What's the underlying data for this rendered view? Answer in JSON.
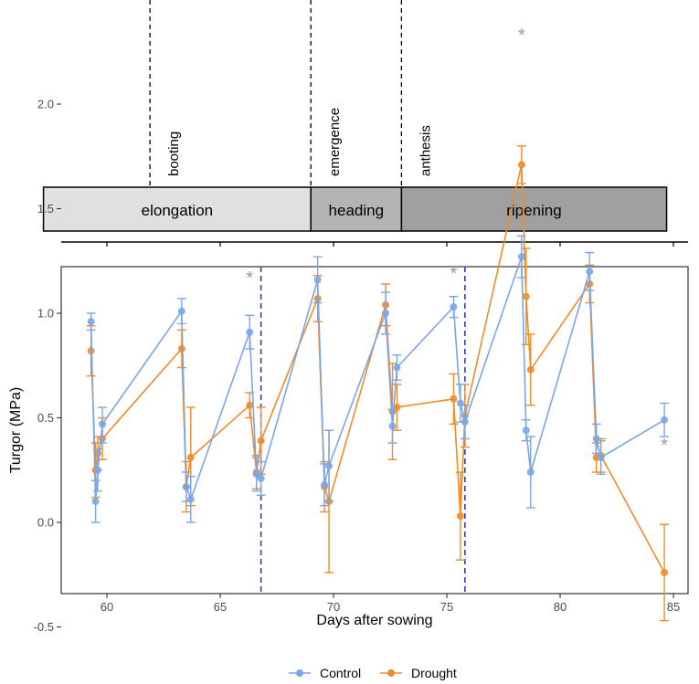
{
  "chart_data": {
    "type": "line",
    "xlabel": "Days after sowing",
    "ylabel": "Turgor (MPa)",
    "xlim": [
      58,
      86
    ],
    "ylim": [
      -0.6,
      2.3
    ],
    "x_ticks": [
      60,
      65,
      70,
      75,
      80,
      85
    ],
    "y_ticks": [
      -0.5,
      0.0,
      0.5,
      1.0,
      1.5,
      2.0
    ],
    "x_tick_labels": [
      "60",
      "65",
      "70",
      "75",
      "80",
      "85"
    ],
    "y_tick_labels": [
      "-0.5",
      "0.0",
      "0.5",
      "1.0",
      "1.5",
      "2.0"
    ],
    "stage_events": [
      {
        "label": "booting",
        "day": 61.9
      },
      {
        "label": "emergence",
        "day": 69.0
      },
      {
        "label": "anthesis",
        "day": 73.0
      }
    ],
    "stages": [
      {
        "label": "elongation",
        "start": 57.2,
        "end": 69.0,
        "color": "#e0e0e0"
      },
      {
        "label": "heading",
        "start": 69.0,
        "end": 73.0,
        "color": "#b4b4b4"
      },
      {
        "label": "ripening",
        "start": 73.0,
        "end": 84.7,
        "color": "#a0a0a0"
      }
    ],
    "vlines": [
      66.8,
      75.8
    ],
    "vline_color": "#3a3ab0",
    "series": [
      {
        "name": "Control",
        "color": "#7aa6e8",
        "points": [
          {
            "x": 59.3,
            "y": 0.96,
            "lo": 0.92,
            "hi": 1.0
          },
          {
            "x": 59.5,
            "y": 0.1,
            "lo": 0.0,
            "hi": 0.2
          },
          {
            "x": 59.6,
            "y": 0.25,
            "lo": 0.15,
            "hi": 0.35
          },
          {
            "x": 59.8,
            "y": 0.47,
            "lo": 0.38,
            "hi": 0.55
          },
          {
            "x": 63.3,
            "y": 1.01,
            "lo": 0.95,
            "hi": 1.07
          },
          {
            "x": 63.5,
            "y": 0.17,
            "lo": 0.1,
            "hi": 0.24
          },
          {
            "x": 63.7,
            "y": 0.11,
            "lo": 0.0,
            "hi": 0.22
          },
          {
            "x": 66.3,
            "y": 0.91,
            "lo": 0.83,
            "hi": 0.99
          },
          {
            "x": 66.6,
            "y": 0.23,
            "lo": 0.15,
            "hi": 0.31
          },
          {
            "x": 66.8,
            "y": 0.21,
            "lo": 0.13,
            "hi": 0.29
          },
          {
            "x": 69.3,
            "y": 1.16,
            "lo": 1.05,
            "hi": 1.27
          },
          {
            "x": 69.6,
            "y": 0.18,
            "lo": 0.08,
            "hi": 0.28
          },
          {
            "x": 69.8,
            "y": 0.27,
            "lo": 0.1,
            "hi": 0.44
          },
          {
            "x": 72.3,
            "y": 1.0,
            "lo": 0.9,
            "hi": 1.1
          },
          {
            "x": 72.6,
            "y": 0.46,
            "lo": 0.38,
            "hi": 0.54
          },
          {
            "x": 72.8,
            "y": 0.74,
            "lo": 0.68,
            "hi": 0.8
          },
          {
            "x": 75.3,
            "y": 1.03,
            "lo": 0.98,
            "hi": 1.08
          },
          {
            "x": 75.6,
            "y": 0.57,
            "lo": 0.48,
            "hi": 0.66
          },
          {
            "x": 75.8,
            "y": 0.48,
            "lo": 0.4,
            "hi": 0.56
          },
          {
            "x": 78.3,
            "y": 1.27,
            "lo": 1.17,
            "hi": 1.37
          },
          {
            "x": 78.5,
            "y": 0.44,
            "lo": 0.39,
            "hi": 0.49
          },
          {
            "x": 78.7,
            "y": 0.24,
            "lo": 0.07,
            "hi": 0.41
          },
          {
            "x": 81.3,
            "y": 1.2,
            "lo": 1.11,
            "hi": 1.29
          },
          {
            "x": 81.6,
            "y": 0.4,
            "lo": 0.33,
            "hi": 0.47
          },
          {
            "x": 81.8,
            "y": 0.31,
            "lo": 0.23,
            "hi": 0.39
          },
          {
            "x": 84.6,
            "y": 0.49,
            "lo": 0.41,
            "hi": 0.57
          }
        ]
      },
      {
        "name": "Drought",
        "color": "#ef8c26",
        "points": [
          {
            "x": 59.3,
            "y": 0.82,
            "lo": 0.7,
            "hi": 0.94
          },
          {
            "x": 59.5,
            "y": 0.25,
            "lo": 0.12,
            "hi": 0.38
          },
          {
            "x": 59.6,
            "y": 0.33,
            "lo": 0.25,
            "hi": 0.41
          },
          {
            "x": 59.8,
            "y": 0.4,
            "lo": 0.3,
            "hi": 0.5
          },
          {
            "x": 63.3,
            "y": 0.83,
            "lo": 0.74,
            "hi": 0.92
          },
          {
            "x": 63.5,
            "y": 0.17,
            "lo": 0.05,
            "hi": 0.29
          },
          {
            "x": 63.7,
            "y": 0.31,
            "lo": 0.08,
            "hi": 0.55
          },
          {
            "x": 66.3,
            "y": 0.56,
            "lo": 0.5,
            "hi": 0.62
          },
          {
            "x": 66.6,
            "y": 0.24,
            "lo": 0.16,
            "hi": 0.32
          },
          {
            "x": 66.8,
            "y": 0.39,
            "lo": 0.23,
            "hi": 0.55
          },
          {
            "x": 69.3,
            "y": 1.07,
            "lo": 0.96,
            "hi": 1.18
          },
          {
            "x": 69.6,
            "y": 0.17,
            "lo": 0.05,
            "hi": 0.29
          },
          {
            "x": 69.8,
            "y": 0.1,
            "lo": -0.24,
            "hi": 0.44
          },
          {
            "x": 72.3,
            "y": 1.04,
            "lo": 0.94,
            "hi": 1.14
          },
          {
            "x": 72.6,
            "y": 0.53,
            "lo": 0.3,
            "hi": 0.76
          },
          {
            "x": 72.8,
            "y": 0.55,
            "lo": 0.44,
            "hi": 0.66
          },
          {
            "x": 75.3,
            "y": 0.59,
            "lo": 0.47,
            "hi": 0.71
          },
          {
            "x": 75.6,
            "y": 0.03,
            "lo": -0.18,
            "hi": 0.24
          },
          {
            "x": 75.8,
            "y": 0.51,
            "lo": 0.36,
            "hi": 0.66
          },
          {
            "x": 78.3,
            "y": 1.71,
            "lo": 1.62,
            "hi": 1.8
          },
          {
            "x": 78.5,
            "y": 1.08,
            "lo": 0.85,
            "hi": 1.31
          },
          {
            "x": 78.7,
            "y": 0.73,
            "lo": 0.56,
            "hi": 0.9
          },
          {
            "x": 81.3,
            "y": 1.14,
            "lo": 1.05,
            "hi": 1.23
          },
          {
            "x": 81.6,
            "y": 0.31,
            "lo": 0.24,
            "hi": 0.38
          },
          {
            "x": 81.8,
            "y": 0.32,
            "lo": 0.24,
            "hi": 0.4
          },
          {
            "x": 84.6,
            "y": -0.24,
            "lo": -0.47,
            "hi": -0.01
          }
        ]
      }
    ],
    "significance": [
      {
        "x": 66.3,
        "y": 1.18,
        "label": "*"
      },
      {
        "x": 75.3,
        "y": 1.2,
        "label": "*"
      },
      {
        "x": 78.3,
        "y": 2.34,
        "label": "*"
      },
      {
        "x": 84.6,
        "y": 0.38,
        "label": "*"
      }
    ],
    "legend": {
      "position": "bottom",
      "entries": [
        "Control",
        "Drought"
      ]
    }
  }
}
